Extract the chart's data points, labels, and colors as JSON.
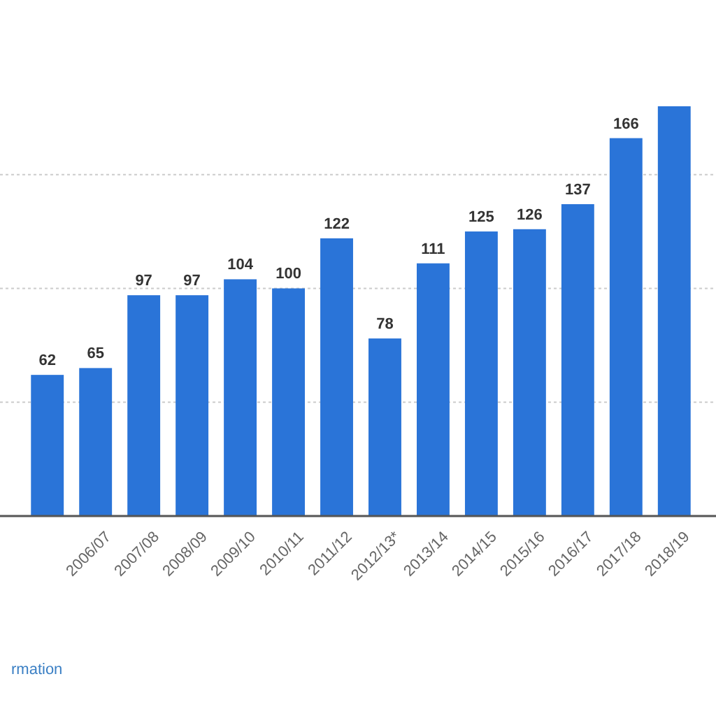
{
  "chart_data": {
    "type": "bar",
    "categories": [
      null,
      "2006/07",
      "2007/08",
      "2008/09",
      "2009/10",
      "2010/11",
      "2011/12",
      "2012/13*",
      "2013/14",
      "2014/15",
      "2015/16",
      "2016/17",
      "2017/18",
      "2018/19"
    ],
    "values": [
      62,
      65,
      97,
      97,
      104,
      100,
      122,
      78,
      111,
      125,
      126,
      137,
      166,
      180
    ],
    "value_labels": [
      "62",
      "65",
      "97",
      "97",
      "104",
      "100",
      "122",
      "78",
      "111",
      "125",
      "126",
      "137",
      "166",
      null
    ],
    "color": "#2a74d8",
    "yticks": [
      {
        "value": 0,
        "label": null
      },
      {
        "value": 50,
        "label": null
      },
      {
        "value": 100,
        "label": null
      },
      {
        "value": 150,
        "label": null
      }
    ],
    "grid": "y",
    "tick_labels": "x",
    "annotations": [
      "rmation"
    ]
  }
}
